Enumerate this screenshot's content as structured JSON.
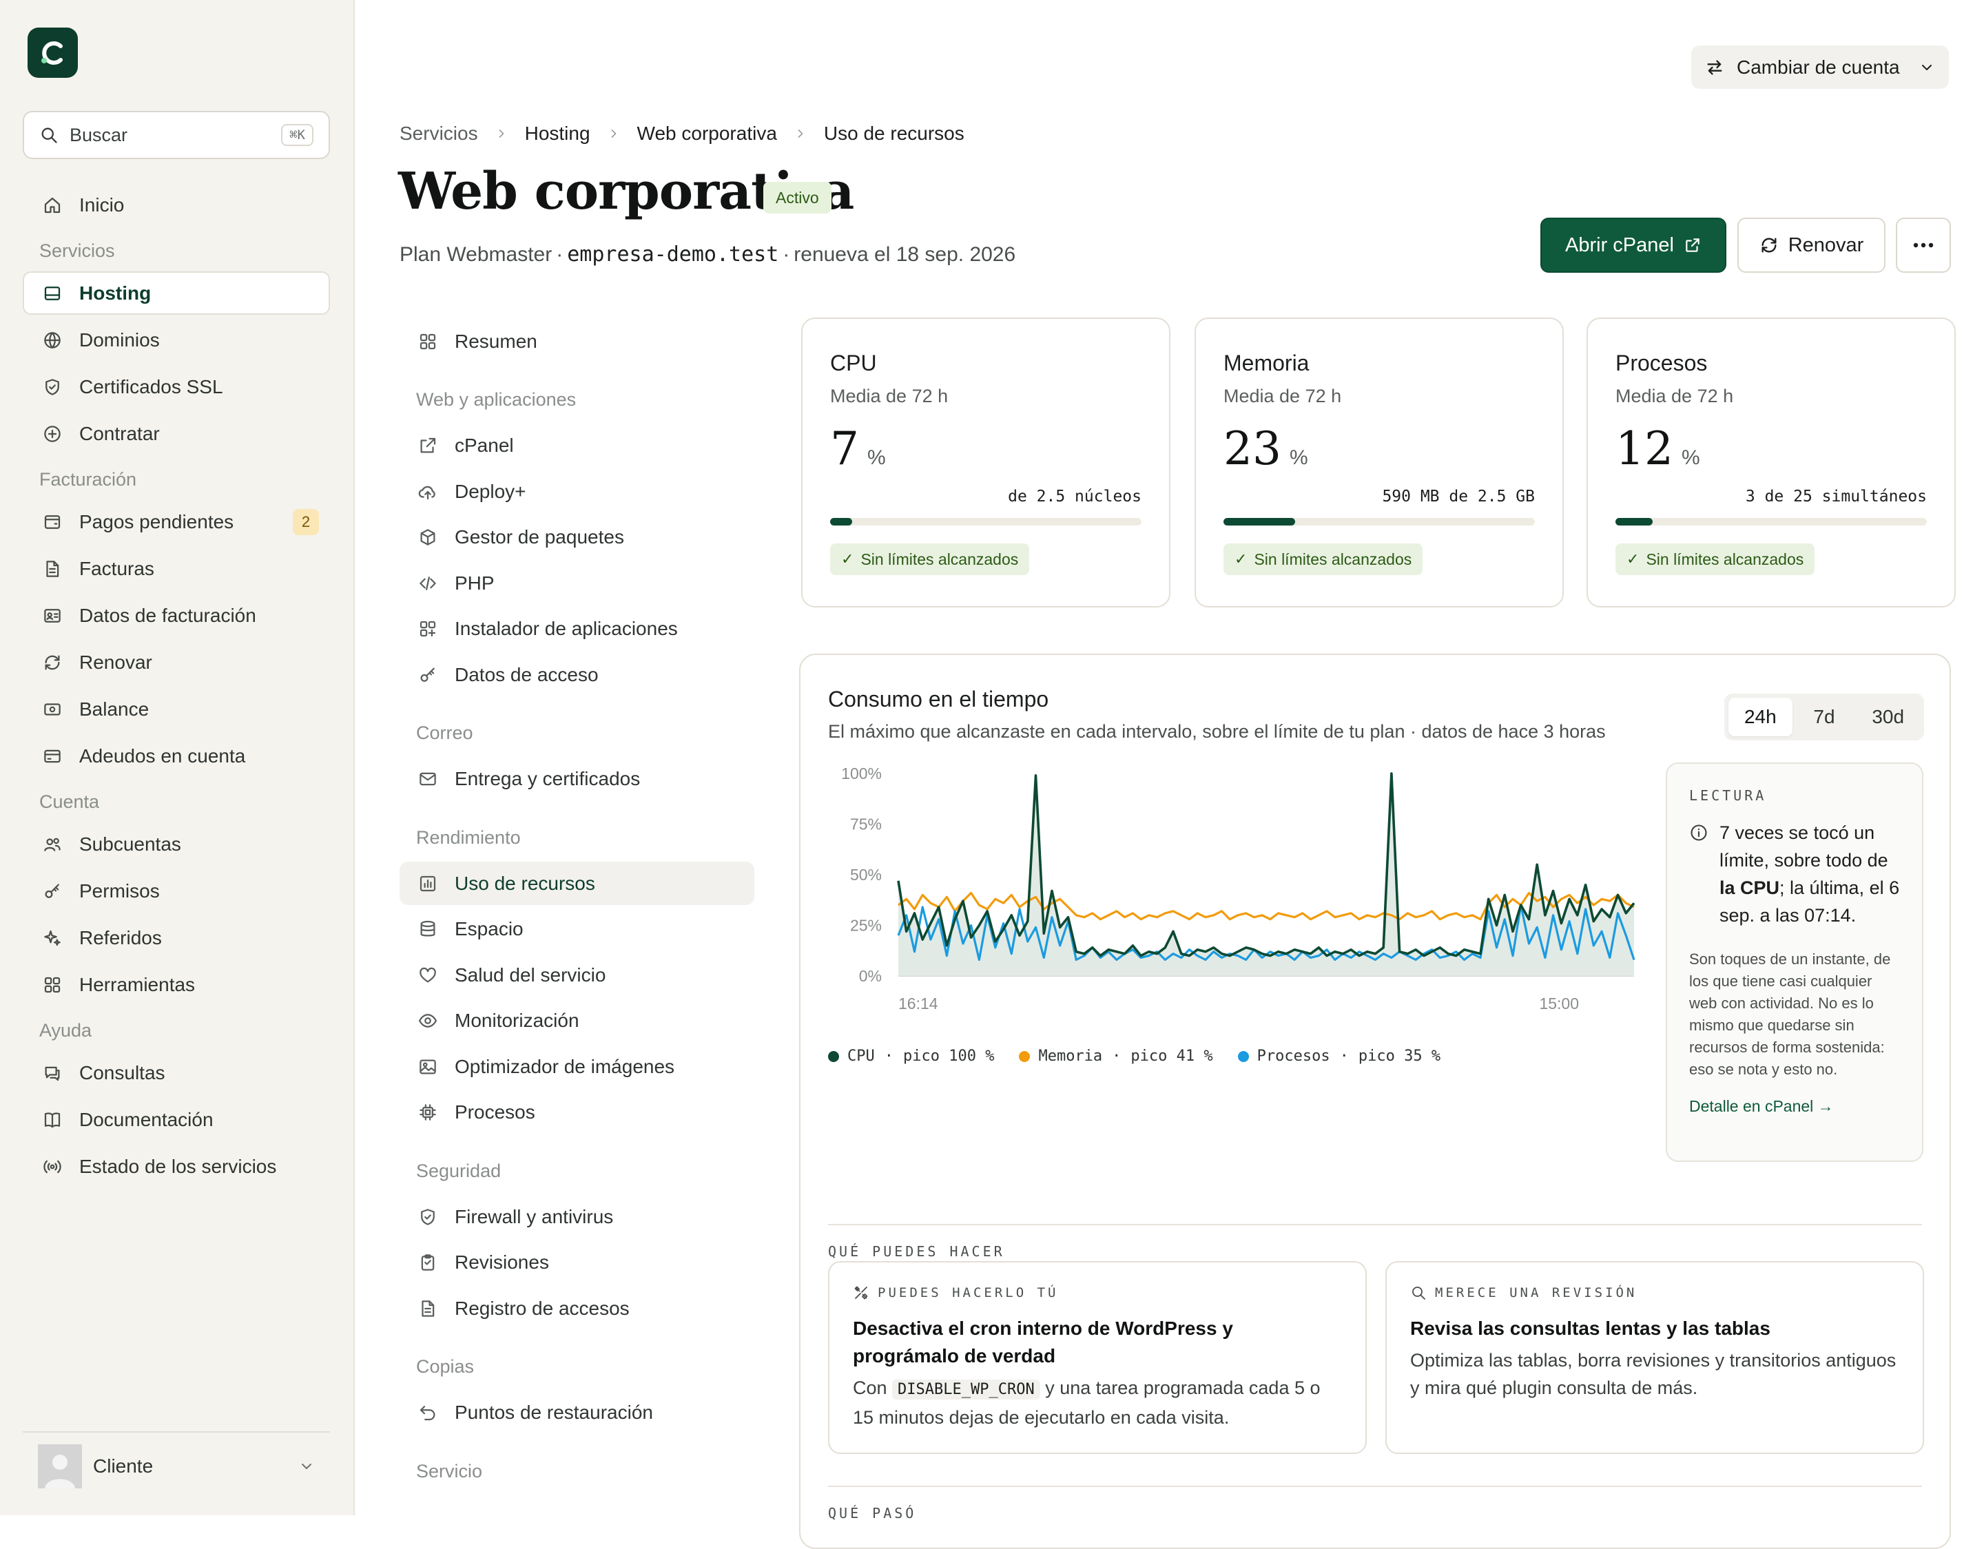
{
  "sidebar": {
    "search": {
      "placeholder": "Buscar",
      "shortcut": "⌘K"
    },
    "items": [
      {
        "type": "item",
        "label": "Inicio",
        "icon": "home-icon"
      },
      {
        "type": "section",
        "label": "Servicios"
      },
      {
        "type": "item",
        "label": "Hosting",
        "icon": "hosting-icon",
        "active": true
      },
      {
        "type": "item",
        "label": "Dominios",
        "icon": "globe-icon"
      },
      {
        "type": "item",
        "label": "Certificados SSL",
        "icon": "shield-icon"
      },
      {
        "type": "item",
        "label": "Contratar",
        "icon": "plus-circle-icon"
      },
      {
        "type": "section",
        "label": "Facturación"
      },
      {
        "type": "item",
        "label": "Pagos pendientes",
        "icon": "wallet-icon",
        "badge": "2"
      },
      {
        "type": "item",
        "label": "Facturas",
        "icon": "file-icon"
      },
      {
        "type": "item",
        "label": "Datos de facturación",
        "icon": "id-card-icon"
      },
      {
        "type": "item",
        "label": "Renovar",
        "icon": "refresh-icon"
      },
      {
        "type": "item",
        "label": "Balance",
        "icon": "banknote-icon"
      },
      {
        "type": "item",
        "label": "Adeudos en cuenta",
        "icon": "credit-card-icon"
      },
      {
        "type": "section",
        "label": "Cuenta"
      },
      {
        "type": "item",
        "label": "Subcuentas",
        "icon": "users-icon"
      },
      {
        "type": "item",
        "label": "Permisos",
        "icon": "key-icon"
      },
      {
        "type": "item",
        "label": "Referidos",
        "icon": "sparkles-icon"
      },
      {
        "type": "item",
        "label": "Herramientas",
        "icon": "grid-icon"
      },
      {
        "type": "section",
        "label": "Ayuda"
      },
      {
        "type": "item",
        "label": "Consultas",
        "icon": "chat-icon"
      },
      {
        "type": "item",
        "label": "Documentación",
        "icon": "book-icon"
      },
      {
        "type": "item",
        "label": "Estado de los servicios",
        "icon": "broadcast-icon"
      }
    ],
    "user": {
      "name": "Cliente"
    }
  },
  "header": {
    "switch_account": "Cambiar de cuenta",
    "breadcrumb": [
      "Servicios",
      "Hosting",
      "Web corporativa",
      "Uso de recursos"
    ],
    "title": "Web corporativa",
    "status": "Activo",
    "plan": "Plan Webmaster",
    "domain": "empresa-demo.test",
    "renew": "renueva el 18 sep. 2026",
    "actions": {
      "primary": "Abrir cPanel",
      "secondary": "Renovar"
    }
  },
  "subnav": [
    {
      "type": "item",
      "label": "Resumen",
      "icon": "grid-icon"
    },
    {
      "type": "section",
      "label": "Web y aplicaciones"
    },
    {
      "type": "item",
      "label": "cPanel",
      "icon": "external-link-icon"
    },
    {
      "type": "item",
      "label": "Deploy+",
      "icon": "cloud-upload-icon"
    },
    {
      "type": "item",
      "label": "Gestor de paquetes",
      "icon": "box-icon"
    },
    {
      "type": "item",
      "label": "PHP",
      "icon": "code-icon"
    },
    {
      "type": "item",
      "label": "Instalador de aplicaciones",
      "icon": "grid-plus-icon"
    },
    {
      "type": "item",
      "label": "Datos de acceso",
      "icon": "key-icon"
    },
    {
      "type": "section",
      "label": "Correo"
    },
    {
      "type": "item",
      "label": "Entrega y certificados",
      "icon": "mail-icon"
    },
    {
      "type": "section",
      "label": "Rendimiento"
    },
    {
      "type": "item",
      "label": "Uso de recursos",
      "icon": "bar-chart-icon",
      "active": true
    },
    {
      "type": "item",
      "label": "Espacio",
      "icon": "database-icon"
    },
    {
      "type": "item",
      "label": "Salud del servicio",
      "icon": "heart-icon"
    },
    {
      "type": "item",
      "label": "Monitorización",
      "icon": "eye-icon"
    },
    {
      "type": "item",
      "label": "Optimizador de imágenes",
      "icon": "image-icon"
    },
    {
      "type": "item",
      "label": "Procesos",
      "icon": "cpu-icon"
    },
    {
      "type": "section",
      "label": "Seguridad"
    },
    {
      "type": "item",
      "label": "Firewall y antivirus",
      "icon": "shield-icon"
    },
    {
      "type": "item",
      "label": "Revisiones",
      "icon": "clipboard-icon"
    },
    {
      "type": "item",
      "label": "Registro de accesos",
      "icon": "file-icon"
    },
    {
      "type": "section",
      "label": "Copias"
    },
    {
      "type": "item",
      "label": "Puntos de restauración",
      "icon": "undo-icon"
    },
    {
      "type": "section",
      "label": "Servicio"
    }
  ],
  "metrics": [
    {
      "title": "CPU",
      "subtitle": "Media de 72 h",
      "value": "7",
      "unit": "%",
      "caption": "de 2.5 núcleos",
      "fill": 0.07,
      "ok": "Sin límites alcanzados"
    },
    {
      "title": "Memoria",
      "subtitle": "Media de 72 h",
      "value": "23",
      "unit": "%",
      "caption": "590 MB de 2.5 GB",
      "fill": 0.23,
      "ok": "Sin límites alcanzados"
    },
    {
      "title": "Procesos",
      "subtitle": "Media de 72 h",
      "value": "12",
      "unit": "%",
      "caption": "3 de 25 simultáneos",
      "fill": 0.12,
      "ok": "Sin límites alcanzados"
    }
  ],
  "usage": {
    "title": "Consumo en el tiempo",
    "subtitle": "El máximo que alcanzaste en cada intervalo, sobre el límite de tu plan · datos de hace 3 horas",
    "ranges": [
      "24h",
      "7d",
      "30d"
    ],
    "active_range": "24h",
    "reading": {
      "tag": "LECTURA",
      "main_pre": "7 veces se tocó un límite, sobre todo de ",
      "main_bold": "la CPU",
      "main_post": "; la última, el 6 sep. a las 07:14.",
      "note": "Son toques de un instante, de los que tiene casi cualquier web con actividad. No es lo mismo que quedarse sin recursos de forma sostenida: eso se nota y esto no.",
      "link": "Detalle en cPanel →"
    },
    "actions_tag": "QUÉ PUEDES HACER",
    "tips": [
      {
        "tag": "PUEDES HACERLO TÚ",
        "icon": "tools-icon",
        "title": "Desactiva el cron interno de WordPress y prográmalo de verdad",
        "body_pre": "Con ",
        "code": "DISABLE_WP_CRON",
        "body_post": " y una tarea programada cada 5 o 15 minutos dejas de ejecutarlo en cada visita."
      },
      {
        "tag": "MERECE UNA REVISIÓN",
        "icon": "search-icon",
        "title": "Revisa las consultas lentas y las tablas",
        "body_pre": "Optimiza las tablas, borra revisiones y transitorios antiguos y mira qué plugin consulta de más.",
        "code": "",
        "body_post": ""
      }
    ],
    "history_tag": "QUÉ PASÓ"
  },
  "chart_data": {
    "type": "line",
    "y_ticks": [
      "100%",
      "75%",
      "50%",
      "25%",
      "0%"
    ],
    "ylim": [
      0,
      100
    ],
    "x_labels": [
      "16:14",
      "15:00"
    ],
    "grid": true,
    "legend_position": "bottom-left",
    "series": [
      {
        "name": "CPU",
        "peak_label": "pico 100 %",
        "color": "#0d4a33",
        "values": [
          47,
          22,
          31,
          18,
          26,
          34,
          15,
          28,
          37,
          19,
          25,
          32,
          17,
          23,
          30,
          20,
          27,
          99,
          21,
          42,
          24,
          29,
          12,
          11,
          14,
          10,
          13,
          12,
          11,
          15,
          10,
          12,
          11,
          14,
          22,
          11,
          10,
          13,
          12,
          14,
          11,
          10,
          12,
          14,
          13,
          11,
          10,
          12,
          11,
          13,
          12,
          11,
          14,
          10,
          12,
          11,
          13,
          10,
          12,
          11,
          14,
          100,
          12,
          11,
          13,
          10,
          12,
          14,
          11,
          10,
          13,
          12,
          11,
          38,
          25,
          40,
          22,
          35,
          28,
          55,
          30,
          42,
          26,
          38,
          30,
          45,
          27,
          33,
          29,
          40,
          31,
          36
        ]
      },
      {
        "name": "Memoria",
        "peak_label": "pico 41 %",
        "color": "#f29b0c",
        "values": [
          35,
          38,
          33,
          40,
          36,
          34,
          39,
          32,
          37,
          41,
          35,
          33,
          38,
          36,
          40,
          34,
          37,
          39,
          33,
          36,
          38,
          34,
          30,
          29,
          31,
          28,
          30,
          32,
          29,
          31,
          28,
          30,
          29,
          31,
          32,
          30,
          28,
          31,
          29,
          30,
          32,
          28,
          30,
          31,
          29,
          30,
          28,
          31,
          30,
          29,
          31,
          28,
          30,
          32,
          29,
          30,
          31,
          28,
          30,
          29,
          31,
          30,
          28,
          31,
          29,
          30,
          32,
          28,
          30,
          31,
          29,
          30,
          28,
          36,
          40,
          34,
          38,
          35,
          41,
          37,
          39,
          34,
          38,
          40,
          36,
          39,
          35,
          38,
          37,
          40,
          36,
          34
        ]
      },
      {
        "name": "Procesos",
        "peak_label": "pico 35 %",
        "color": "#1b9be0",
        "values": [
          20,
          30,
          12,
          34,
          18,
          28,
          10,
          32,
          16,
          25,
          8,
          30,
          14,
          26,
          11,
          33,
          17,
          24,
          9,
          29,
          15,
          27,
          8,
          10,
          14,
          9,
          12,
          8,
          11,
          13,
          9,
          10,
          12,
          8,
          11,
          9,
          13,
          10,
          8,
          12,
          9,
          11,
          10,
          8,
          13,
          9,
          12,
          10,
          11,
          8,
          12,
          9,
          10,
          13,
          8,
          11,
          9,
          12,
          10,
          8,
          11,
          9,
          12,
          10,
          8,
          11,
          13,
          9,
          10,
          12,
          8,
          11,
          9,
          32,
          14,
          28,
          10,
          35,
          16,
          24,
          9,
          30,
          13,
          27,
          11,
          33,
          15,
          22,
          9,
          31,
          20,
          8
        ]
      }
    ]
  }
}
